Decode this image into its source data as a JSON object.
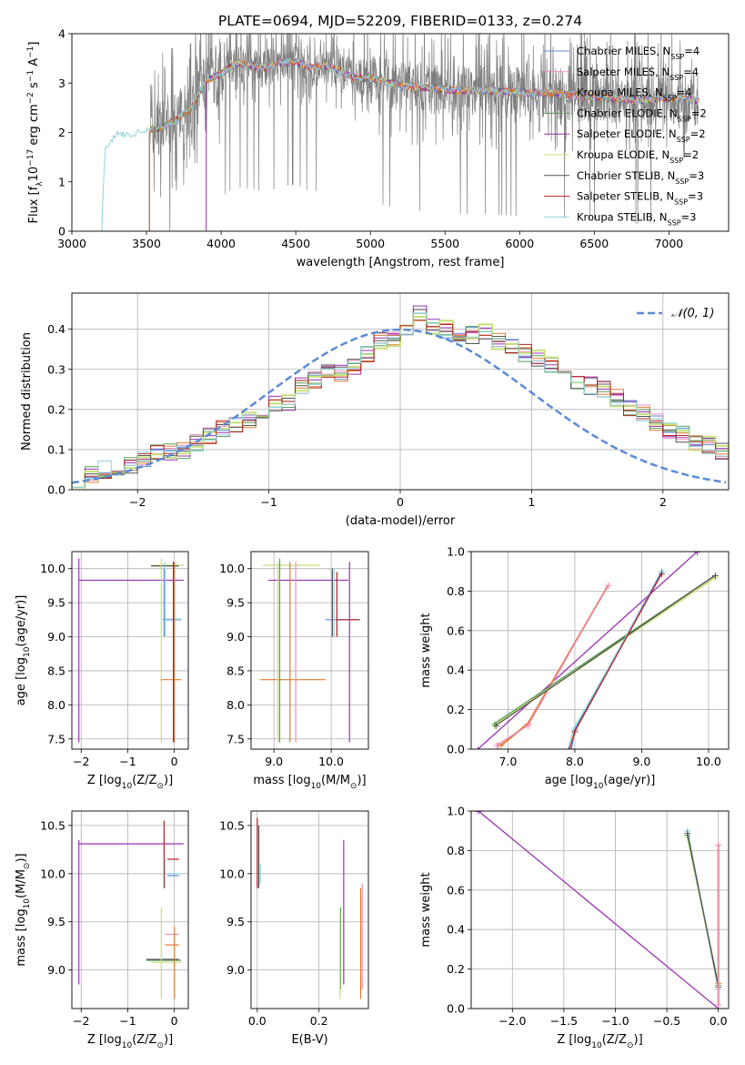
{
  "figure": {
    "title": "PLATE=0694, MJD=52209, FIBERID=0133, z=0.274"
  },
  "colors": {
    "chabrier_miles": "#5b8bd6",
    "salpeter_miles": "#f08bbf",
    "kroupa_miles": "#e07b32",
    "chabrier_elodie": "#5b9e57",
    "salpeter_elodie": "#9b30b5",
    "kroupa_elodie": "#c8e07a",
    "chabrier_stelib": "#555555",
    "salpeter_stelib": "#b22222",
    "kroupa_stelib": "#8fd3dc",
    "data": "#808080",
    "normal": "#5b8bd6",
    "grid": "#b0b0b0"
  },
  "legend": [
    {
      "name": "Chabrier MILES, N",
      "sub": "SSP",
      "suffix": "=4"
    },
    {
      "name": "Salpeter MILES, N",
      "sub": "SSP",
      "suffix": "=4"
    },
    {
      "name": "Kroupa MILES, N",
      "sub": "SSP",
      "suffix": "=4"
    },
    {
      "name": "Chabrier ELODIE, N",
      "sub": "SSP",
      "suffix": "=2"
    },
    {
      "name": "Salpeter ELODIE, N",
      "sub": "SSP",
      "suffix": "=2"
    },
    {
      "name": "Kroupa ELODIE, N",
      "sub": "SSP",
      "suffix": "=2"
    },
    {
      "name": "Chabrier STELIB, N",
      "sub": "SSP",
      "suffix": "=3"
    },
    {
      "name": "Salpeter STELIB, N",
      "sub": "SSP",
      "suffix": "=3"
    },
    {
      "name": "Kroupa STELIB, N",
      "sub": "SSP",
      "suffix": "=3"
    }
  ],
  "chart_data": [
    {
      "id": "spectrum",
      "type": "line",
      "xlabel": "wavelength [Angstrom, rest frame]",
      "ylabel": "Flux [f",
      "ylabel_parts": {
        "a": "Flux [f",
        "a_sub": "λ",
        "b": "10",
        "b_sup": "−17",
        "c": " erg cm",
        "c_sup": "−2",
        "d": " s",
        "d_sup": "−1",
        "e": " A",
        "e_sup": "−1",
        "f": "]"
      },
      "xlim": [
        3000,
        7400
      ],
      "ylim": [
        0,
        4
      ],
      "xticks": [
        3000,
        3500,
        4000,
        4500,
        5000,
        5500,
        6000,
        6500,
        7000
      ],
      "yticks": [
        0,
        1,
        2,
        3,
        4
      ],
      "model_continuum": {
        "x": [
          3200,
          3220,
          3300,
          3400,
          3500,
          3600,
          3700,
          3800,
          3900,
          4000,
          4100,
          4200,
          4300,
          4400,
          4500,
          4600,
          4700,
          4800,
          4900,
          5000,
          5200,
          5400,
          5600,
          5800,
          6000,
          6200,
          6400,
          6600,
          6800,
          7000,
          7200
        ],
        "y": [
          0.0,
          1.6,
          2.0,
          1.95,
          2.05,
          2.1,
          2.25,
          2.5,
          3.05,
          3.2,
          3.4,
          3.35,
          3.3,
          3.4,
          3.45,
          3.3,
          3.35,
          3.25,
          3.1,
          3.1,
          2.95,
          2.9,
          2.85,
          2.85,
          2.8,
          2.8,
          2.75,
          2.7,
          2.65,
          2.7,
          2.65
        ]
      },
      "model_starts": {
        "kroupa_stelib": 3200,
        "kroupa_miles": 3520,
        "kroupa_elodie": 3900,
        "salpeter_elodie": 3900
      },
      "data_range": [
        3520,
        7200
      ]
    },
    {
      "id": "residuals",
      "type": "bar",
      "xlabel": "(data-model)/error",
      "ylabel": "Normed distribution",
      "xlim": [
        -2.5,
        2.5
      ],
      "ylim": [
        0,
        0.49
      ],
      "xticks": [
        -2,
        -1,
        0,
        1,
        2
      ],
      "yticks": [
        0.0,
        0.1,
        0.2,
        0.3,
        0.4
      ],
      "legend": "𝒩(0, 1)",
      "bin_width": 0.1,
      "hist_center": [
        0.028,
        0.04,
        0.05,
        0.055,
        0.06,
        0.075,
        0.09,
        0.095,
        0.1,
        0.115,
        0.135,
        0.15,
        0.16,
        0.175,
        0.19,
        0.215,
        0.215,
        0.26,
        0.275,
        0.3,
        0.29,
        0.31,
        0.34,
        0.37,
        0.38,
        0.4,
        0.44,
        0.41,
        0.4,
        0.375,
        0.385,
        0.39,
        0.37,
        0.36,
        0.34,
        0.33,
        0.31,
        0.3,
        0.27,
        0.26,
        0.25,
        0.23,
        0.2,
        0.19,
        0.17,
        0.15,
        0.14,
        0.12,
        0.11,
        0.095,
        0.09,
        0.08,
        0.07,
        0.075,
        0.06,
        0.06,
        0.05,
        0.045,
        0.04,
        0.035
      ],
      "hist_start": -2.5
    },
    {
      "id": "age_vs_z",
      "type": "scatter",
      "xlabel": "Z [log",
      "xlabel_parts": {
        "a": "Z [log",
        "a_sub": "10",
        "b": "(Z/Z",
        "b_sub": "⊙",
        "c": ")]"
      },
      "ylabel_parts": {
        "a": "age  [log",
        "a_sub": "10",
        "b": "(age/yr)]"
      },
      "xlim": [
        -2.2,
        0.3
      ],
      "ylim": [
        7.35,
        10.25
      ],
      "xticks": [
        -2,
        -1,
        0
      ],
      "yticks": [
        7.5,
        8.0,
        8.5,
        9.0,
        9.5,
        10.0
      ],
      "hbars": [
        {
          "series": "salpeter_elodie",
          "y": 9.83,
          "x0": -2.05,
          "x1": 0.2
        },
        {
          "series": "kroupa_elodie",
          "y": 10.05,
          "x0": -0.5,
          "x1": 0.2
        },
        {
          "series": "chabrier_miles",
          "y": 9.25,
          "x0": -0.25,
          "x1": 0.15
        },
        {
          "series": "kroupa_stelib",
          "y": 9.26,
          "x0": -0.25,
          "x1": 0.15
        },
        {
          "series": "kroupa_miles",
          "y": 8.37,
          "x0": -0.3,
          "x1": 0.15
        },
        {
          "series": "chabrier_stelib",
          "y": 10.04,
          "x0": -0.5,
          "x1": 0.1
        }
      ],
      "vbars": [
        {
          "series": "salpeter_elodie",
          "x": -2.05,
          "y0": 7.45,
          "y1": 10.15
        },
        {
          "series": "kroupa_elodie",
          "x": -0.28,
          "y0": 7.45,
          "y1": 10.15
        },
        {
          "series": "chabrier_miles",
          "x": -0.22,
          "y0": 9.0,
          "y1": 10.0
        },
        {
          "series": "kroupa_stelib",
          "x": -0.2,
          "y0": 9.0,
          "y1": 10.1
        },
        {
          "series": "kroupa_miles",
          "x": 0.0,
          "y0": 7.45,
          "y1": 10.1
        },
        {
          "series": "salpeter_stelib",
          "x": -0.02,
          "y0": 7.45,
          "y1": 10.1
        }
      ]
    },
    {
      "id": "age_vs_mass",
      "type": "scatter",
      "xlabel_parts": {
        "a": "mass [log",
        "a_sub": "10",
        "b": "(M/M",
        "b_sub": "⊙",
        "c": ")]"
      },
      "xlim": [
        8.6,
        10.65
      ],
      "ylim": [
        7.35,
        10.25
      ],
      "xticks": [
        9,
        10
      ],
      "yticks": [
        7.5,
        8.0,
        8.5,
        9.0,
        9.5,
        10.0
      ],
      "hbars": [
        {
          "series": "kroupa_elodie",
          "y": 10.05,
          "x0": 8.8,
          "x1": 9.8
        },
        {
          "series": "salpeter_elodie",
          "y": 9.83,
          "x0": 8.9,
          "x1": 10.3
        },
        {
          "series": "chabrier_miles",
          "y": 9.25,
          "x0": 9.9,
          "x1": 10.5
        },
        {
          "series": "salpeter_stelib",
          "y": 9.25,
          "x0": 10.1,
          "x1": 10.5
        },
        {
          "series": "kroupa_miles",
          "y": 8.37,
          "x0": 8.75,
          "x1": 9.9
        }
      ],
      "vbars": [
        {
          "series": "chabrier_elodie",
          "x": 9.1,
          "y0": 7.45,
          "y1": 10.15
        },
        {
          "series": "kroupa_elodie",
          "x": 9.07,
          "y0": 7.45,
          "y1": 10.1
        },
        {
          "series": "kroupa_miles",
          "x": 9.28,
          "y0": 7.45,
          "y1": 10.1
        },
        {
          "series": "salpeter_miles",
          "x": 9.38,
          "y0": 7.45,
          "y1": 10.1
        },
        {
          "series": "salpeter_elodie",
          "x": 10.32,
          "y0": 7.45,
          "y1": 10.1
        },
        {
          "series": "chabrier_stelib",
          "x": 10.02,
          "y0": 9.0,
          "y1": 10.0
        },
        {
          "series": "salpeter_stelib",
          "x": 10.1,
          "y0": 9.0,
          "y1": 9.95
        },
        {
          "series": "kroupa_stelib",
          "x": 10.05,
          "y0": 9.0,
          "y1": 10.0
        }
      ]
    },
    {
      "id": "massweight_vs_age",
      "type": "line",
      "xlabel_parts": {
        "a": "age  [log",
        "a_sub": "10",
        "b": "(age/yr)]"
      },
      "ylabel": "mass weight",
      "xlim": [
        6.45,
        10.3
      ],
      "ylim": [
        0,
        1
      ],
      "xticks": [
        7,
        8,
        9,
        10
      ],
      "yticks": [
        0.0,
        0.2,
        0.4,
        0.6,
        0.8,
        1.0
      ],
      "series": [
        {
          "key": "salpeter_elodie",
          "x": [
            6.55,
            9.83
          ],
          "y": [
            0.0,
            1.0
          ]
        },
        {
          "key": "kroupa_miles",
          "x": [
            6.85,
            6.9,
            7.3,
            8.5
          ],
          "y": [
            0.02,
            0.02,
            0.13,
            0.83
          ]
        },
        {
          "key": "salpeter_miles",
          "x": [
            6.83,
            7.3,
            8.5
          ],
          "y": [
            0.02,
            0.12,
            0.83
          ]
        },
        {
          "key": "kroupa_elodie",
          "x": [
            6.8,
            10.1
          ],
          "y": [
            0.12,
            0.87
          ]
        },
        {
          "key": "chabrier_elodie",
          "x": [
            6.8,
            10.1
          ],
          "y": [
            0.13,
            0.88
          ]
        },
        {
          "key": "chabrier_stelib",
          "x": [
            6.82,
            10.1
          ],
          "y": [
            0.12,
            0.88
          ]
        },
        {
          "key": "chabrier_miles",
          "x": [
            7.95,
            8.0,
            9.3
          ],
          "y": [
            0.0,
            0.1,
            0.9
          ]
        },
        {
          "key": "kroupa_stelib",
          "x": [
            7.9,
            7.98,
            9.32
          ],
          "y": [
            0.0,
            0.1,
            0.9
          ]
        },
        {
          "key": "salpeter_stelib",
          "x": [
            7.92,
            8.0,
            9.3
          ],
          "y": [
            0.0,
            0.09,
            0.89
          ]
        }
      ]
    },
    {
      "id": "mass_vs_z",
      "type": "scatter",
      "xlabel_parts": {
        "a": "Z [log",
        "a_sub": "10",
        "b": "(Z/Z",
        "b_sub": "⊙",
        "c": ")]"
      },
      "ylabel_parts": {
        "a": "mass [log",
        "a_sub": "10",
        "b": "(M/M",
        "b_sub": "⊙",
        "c": ")]"
      },
      "xlim": [
        -2.2,
        0.3
      ],
      "ylim": [
        8.6,
        10.65
      ],
      "xticks": [
        -2,
        -1,
        0
      ],
      "yticks": [
        9.0,
        9.5,
        10.0,
        10.5
      ],
      "hbars": [
        {
          "series": "salpeter_elodie",
          "y": 10.31,
          "x0": -2.05,
          "x1": 0.2
        },
        {
          "series": "salpeter_stelib",
          "y": 10.15,
          "x0": -0.15,
          "x1": 0.1
        },
        {
          "series": "kroupa_stelib",
          "y": 10.0,
          "x0": -0.2,
          "x1": 0.15
        },
        {
          "series": "chabrier_miles",
          "y": 9.98,
          "x0": -0.15,
          "x1": 0.1
        },
        {
          "series": "salpeter_miles",
          "y": 9.37,
          "x0": -0.2,
          "x1": 0.1
        },
        {
          "series": "kroupa_miles",
          "y": 9.26,
          "x0": -0.2,
          "x1": 0.1
        },
        {
          "series": "chabrier_elodie",
          "y": 9.1,
          "x0": -0.6,
          "x1": 0.15
        },
        {
          "series": "kroupa_elodie",
          "y": 9.08,
          "x0": -0.5,
          "x1": 0.15
        },
        {
          "series": "chabrier_stelib",
          "y": 9.11,
          "x0": -0.6,
          "x1": 0.1
        }
      ],
      "vbars": [
        {
          "series": "salpeter_elodie",
          "x": -2.05,
          "y0": 8.85,
          "y1": 10.35
        },
        {
          "series": "salpeter_stelib",
          "x": -0.22,
          "y0": 9.85,
          "y1": 10.55
        },
        {
          "series": "kroupa_stelib",
          "x": -0.2,
          "y0": 9.85,
          "y1": 10.15
        },
        {
          "series": "kroupa_elodie",
          "x": -0.28,
          "y0": 8.7,
          "y1": 9.65
        },
        {
          "series": "kroupa_miles",
          "x": 0.0,
          "y0": 8.7,
          "y1": 9.45
        }
      ]
    },
    {
      "id": "mass_vs_ebv",
      "type": "scatter",
      "xlabel": "E(B-V)",
      "xlim": [
        -0.02,
        0.36
      ],
      "ylim": [
        8.6,
        10.65
      ],
      "xticks": [
        0.0,
        0.2
      ],
      "yticks": [
        9.0,
        9.5,
        10.0,
        10.5
      ],
      "vbars": [
        {
          "series": "salpeter_stelib",
          "x": 0.0,
          "y0": 9.85,
          "y1": 10.58
        },
        {
          "series": "chabrier_stelib",
          "x": 0.005,
          "y0": 9.85,
          "y1": 10.5
        },
        {
          "series": "kroupa_stelib",
          "x": 0.01,
          "y0": 9.9,
          "y1": 10.1
        },
        {
          "series": "salpeter_elodie",
          "x": 0.28,
          "y0": 8.85,
          "y1": 10.35
        },
        {
          "series": "chabrier_elodie",
          "x": 0.27,
          "y0": 8.8,
          "y1": 9.65
        },
        {
          "series": "kroupa_elodie",
          "x": 0.268,
          "y0": 8.7,
          "y1": 9.6
        },
        {
          "series": "kroupa_miles",
          "x": 0.335,
          "y0": 8.7,
          "y1": 9.85
        },
        {
          "series": "salpeter_miles",
          "x": 0.34,
          "y0": 8.8,
          "y1": 9.9
        }
      ]
    },
    {
      "id": "massweight_vs_z",
      "type": "line",
      "xlabel_parts": {
        "a": "Z [log",
        "a_sub": "10",
        "b": "(Z/Z",
        "b_sub": "⊙",
        "c": ")]"
      },
      "ylabel": "mass weight",
      "xlim": [
        -2.4,
        0.1
      ],
      "ylim": [
        0,
        1
      ],
      "xticks": [
        -2.0,
        -1.5,
        -1.0,
        -0.5,
        0.0
      ],
      "yticks": [
        0.0,
        0.2,
        0.4,
        0.6,
        0.8,
        1.0
      ],
      "series": [
        {
          "key": "salpeter_elodie",
          "x": [
            -2.33,
            0.0
          ],
          "y": [
            1.0,
            0.0
          ]
        },
        {
          "key": "kroupa_elodie",
          "x": [
            -0.3,
            0.0
          ],
          "y": [
            0.87,
            0.12
          ]
        },
        {
          "key": "chabrier_elodie",
          "x": [
            -0.3,
            0.0
          ],
          "y": [
            0.88,
            0.12
          ]
        },
        {
          "key": "chabrier_miles",
          "x": [
            -0.3,
            0.0,
            0.0
          ],
          "y": [
            0.9,
            0.1,
            0.0
          ]
        },
        {
          "key": "kroupa_stelib",
          "x": [
            -0.3,
            0.0,
            0.0
          ],
          "y": [
            0.9,
            0.1,
            0.0
          ]
        },
        {
          "key": "chabrier_stelib",
          "x": [
            -0.3,
            0.0
          ],
          "y": [
            0.89,
            0.11
          ]
        },
        {
          "key": "kroupa_miles",
          "x": [
            0.0,
            0.0,
            0.0
          ],
          "y": [
            0.83,
            0.13,
            0.02
          ]
        },
        {
          "key": "salpeter_miles",
          "x": [
            0.0,
            0.0
          ],
          "y": [
            0.83,
            0.02
          ]
        }
      ]
    }
  ]
}
